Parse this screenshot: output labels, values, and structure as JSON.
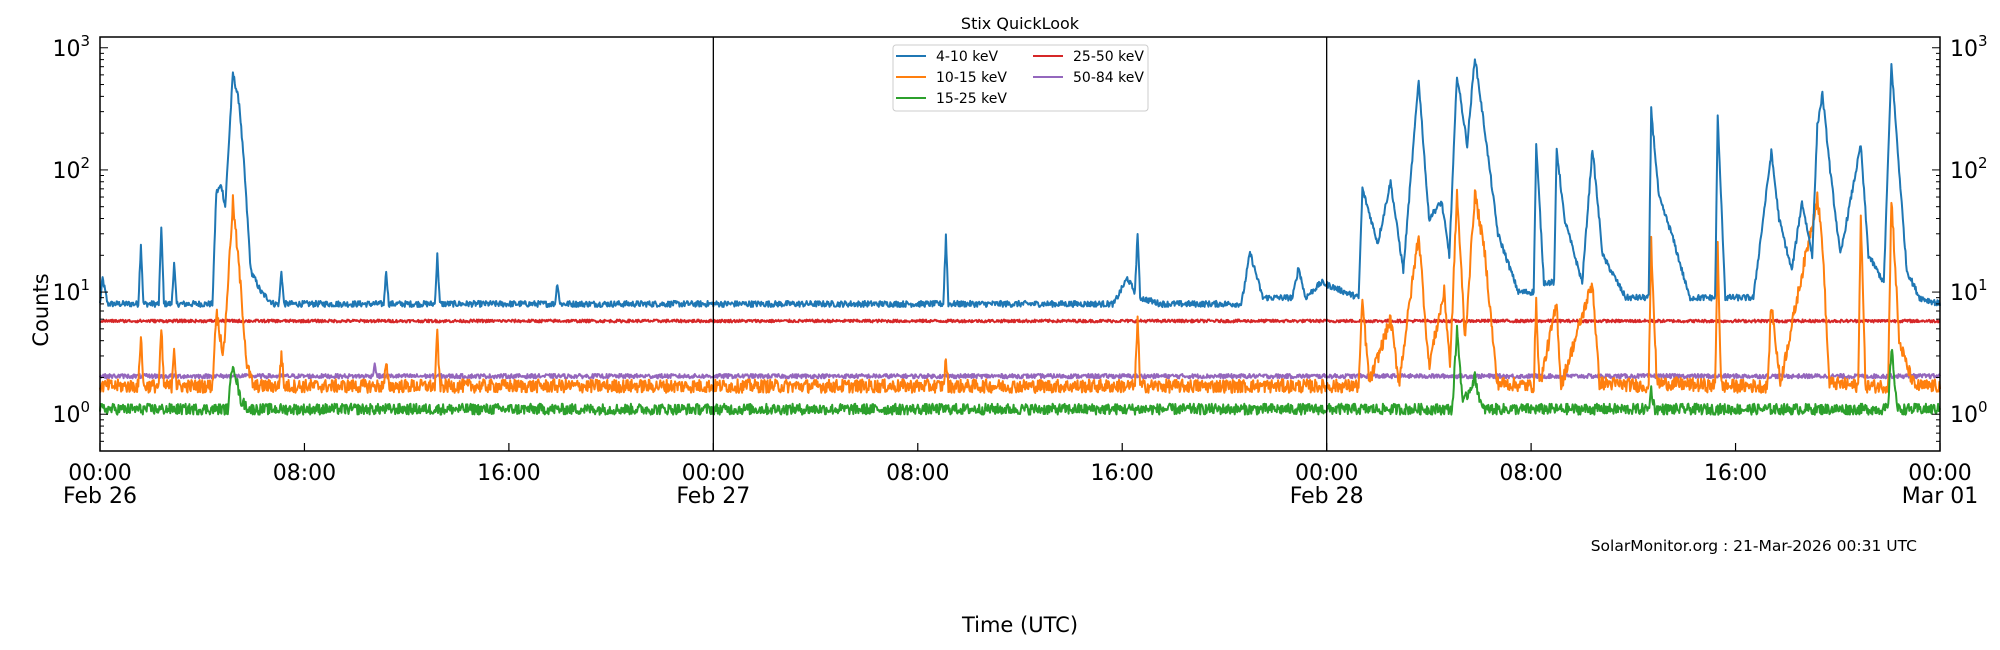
{
  "chart_data": {
    "type": "line",
    "title": "Stix QuickLook",
    "xlabel": "Time (UTC)",
    "ylabel": "Counts",
    "yscale": "log",
    "ylim": [
      0.5,
      1225
    ],
    "xlim": [
      "2026-02-26T00:00",
      "2026-03-01T00:00"
    ],
    "grid": false,
    "legend_placement": "top-center",
    "watermark": "SolarMonitor.org : 21-Mar-2026 00:31 UTC",
    "day_separators": [
      "2026-02-27T00:00",
      "2026-02-28T00:00"
    ],
    "x_ticks": [
      {
        "t": "2026-02-26T00:00",
        "label": "00:00",
        "sub": "Feb 26"
      },
      {
        "t": "2026-02-26T08:00",
        "label": "08:00",
        "sub": ""
      },
      {
        "t": "2026-02-26T16:00",
        "label": "16:00",
        "sub": ""
      },
      {
        "t": "2026-02-27T00:00",
        "label": "00:00",
        "sub": "Feb 27"
      },
      {
        "t": "2026-02-27T08:00",
        "label": "08:00",
        "sub": ""
      },
      {
        "t": "2026-02-27T16:00",
        "label": "16:00",
        "sub": ""
      },
      {
        "t": "2026-02-28T00:00",
        "label": "00:00",
        "sub": "Feb 28"
      },
      {
        "t": "2026-02-28T08:00",
        "label": "08:00",
        "sub": ""
      },
      {
        "t": "2026-02-28T16:00",
        "label": "16:00",
        "sub": ""
      },
      {
        "t": "2026-03-01T00:00",
        "label": "00:00",
        "sub": "Mar 01"
      }
    ],
    "y_ticks": [
      {
        "v": 1,
        "base": "10",
        "exp": "0"
      },
      {
        "v": 10,
        "base": "10",
        "exp": "1"
      },
      {
        "v": 100,
        "base": "10",
        "exp": "2"
      },
      {
        "v": 1000,
        "base": "10",
        "exp": "3"
      }
    ],
    "series": [
      {
        "name": "4-10 keV",
        "color": "#1f77b4",
        "points": [
          [
            "2026-02-26T00:00",
            8
          ],
          [
            "2026-02-26T00:06",
            13
          ],
          [
            "2026-02-26T00:18",
            8
          ],
          [
            "2026-02-26T01:30",
            8
          ],
          [
            "2026-02-26T01:36",
            25
          ],
          [
            "2026-02-26T01:42",
            8
          ],
          [
            "2026-02-26T02:18",
            8
          ],
          [
            "2026-02-26T02:24",
            35
          ],
          [
            "2026-02-26T02:30",
            8
          ],
          [
            "2026-02-26T02:48",
            8
          ],
          [
            "2026-02-26T02:54",
            17
          ],
          [
            "2026-02-26T03:00",
            8
          ],
          [
            "2026-02-26T04:24",
            8
          ],
          [
            "2026-02-26T04:33",
            65
          ],
          [
            "2026-02-26T04:45",
            75
          ],
          [
            "2026-02-26T04:54",
            50
          ],
          [
            "2026-02-26T05:12",
            620
          ],
          [
            "2026-02-26T05:27",
            350
          ],
          [
            "2026-02-26T05:39",
            100
          ],
          [
            "2026-02-26T05:54",
            15
          ],
          [
            "2026-02-26T06:18",
            10
          ],
          [
            "2026-02-26T06:48",
            8
          ],
          [
            "2026-02-26T07:00",
            8
          ],
          [
            "2026-02-26T07:06",
            15
          ],
          [
            "2026-02-26T07:12",
            8
          ],
          [
            "2026-02-26T11:06",
            8
          ],
          [
            "2026-02-26T11:12",
            15
          ],
          [
            "2026-02-26T11:18",
            8
          ],
          [
            "2026-02-26T13:06",
            8
          ],
          [
            "2026-02-26T13:12",
            20
          ],
          [
            "2026-02-26T13:18",
            8
          ],
          [
            "2026-02-26T17:48",
            8
          ],
          [
            "2026-02-26T17:54",
            12
          ],
          [
            "2026-02-26T18:00",
            8
          ],
          [
            "2026-02-27T09:00",
            8
          ],
          [
            "2026-02-27T09:06",
            29
          ],
          [
            "2026-02-27T09:12",
            8
          ],
          [
            "2026-02-27T15:40",
            8
          ],
          [
            "2026-02-27T16:12",
            13
          ],
          [
            "2026-02-27T16:30",
            10
          ],
          [
            "2026-02-27T16:36",
            31
          ],
          [
            "2026-02-27T16:42",
            9
          ],
          [
            "2026-02-27T17:30",
            8
          ],
          [
            "2026-02-27T20:40",
            8
          ],
          [
            "2026-02-27T21:00",
            21
          ],
          [
            "2026-02-27T21:30",
            9
          ],
          [
            "2026-02-27T22:40",
            9
          ],
          [
            "2026-02-27T22:54",
            16
          ],
          [
            "2026-02-27T23:10",
            9
          ],
          [
            "2026-02-27T23:48",
            12
          ],
          [
            "2026-02-28T01:15",
            9
          ],
          [
            "2026-02-28T01:24",
            70
          ],
          [
            "2026-02-28T02:00",
            25
          ],
          [
            "2026-02-28T02:30",
            80
          ],
          [
            "2026-02-28T03:00",
            15
          ],
          [
            "2026-02-28T03:36",
            550
          ],
          [
            "2026-02-28T04:00",
            40
          ],
          [
            "2026-02-28T04:30",
            55
          ],
          [
            "2026-02-28T04:48",
            20
          ],
          [
            "2026-02-28T05:06",
            600
          ],
          [
            "2026-02-28T05:30",
            160
          ],
          [
            "2026-02-28T05:48",
            850
          ],
          [
            "2026-02-28T06:12",
            200
          ],
          [
            "2026-02-28T06:42",
            30
          ],
          [
            "2026-02-28T07:30",
            10
          ],
          [
            "2026-02-28T08:06",
            10
          ],
          [
            "2026-02-28T08:12",
            160
          ],
          [
            "2026-02-28T08:30",
            12
          ],
          [
            "2026-02-28T08:54",
            12
          ],
          [
            "2026-02-28T09:00",
            150
          ],
          [
            "2026-02-28T09:18",
            40
          ],
          [
            "2026-02-28T10:00",
            12
          ],
          [
            "2026-02-28T10:24",
            150
          ],
          [
            "2026-02-28T10:48",
            20
          ],
          [
            "2026-02-28T11:42",
            9
          ],
          [
            "2026-02-28T12:36",
            9
          ],
          [
            "2026-02-28T12:42",
            310
          ],
          [
            "2026-02-28T13:00",
            60
          ],
          [
            "2026-02-28T13:30",
            30
          ],
          [
            "2026-02-28T14:12",
            9
          ],
          [
            "2026-02-28T15:12",
            9
          ],
          [
            "2026-02-28T15:18",
            270
          ],
          [
            "2026-02-28T15:36",
            9
          ],
          [
            "2026-02-28T16:42",
            9
          ],
          [
            "2026-02-28T17:24",
            140
          ],
          [
            "2026-02-28T17:42",
            40
          ],
          [
            "2026-02-28T18:12",
            15
          ],
          [
            "2026-02-28T18:36",
            55
          ],
          [
            "2026-02-28T19:00",
            20
          ],
          [
            "2026-02-28T19:12",
            230
          ],
          [
            "2026-02-28T19:24",
            420
          ],
          [
            "2026-02-28T19:42",
            100
          ],
          [
            "2026-02-28T20:06",
            20
          ],
          [
            "2026-02-28T20:54",
            160
          ],
          [
            "2026-02-28T21:12",
            20
          ],
          [
            "2026-02-28T21:48",
            12
          ],
          [
            "2026-02-28T22:06",
            730
          ],
          [
            "2026-02-28T22:24",
            100
          ],
          [
            "2026-02-28T22:42",
            15
          ],
          [
            "2026-02-28T23:12",
            9
          ],
          [
            "2026-03-01T00:00",
            8
          ]
        ]
      },
      {
        "name": "10-15 keV",
        "color": "#ff7f0e",
        "points": [
          [
            "2026-02-26T00:00",
            1.7
          ],
          [
            "2026-02-26T01:30",
            1.7
          ],
          [
            "2026-02-26T01:36",
            4.7
          ],
          [
            "2026-02-26T01:42",
            1.7
          ],
          [
            "2026-02-26T02:18",
            1.7
          ],
          [
            "2026-02-26T02:24",
            5
          ],
          [
            "2026-02-26T02:30",
            1.7
          ],
          [
            "2026-02-26T02:48",
            1.7
          ],
          [
            "2026-02-26T02:54",
            3.7
          ],
          [
            "2026-02-26T03:00",
            1.7
          ],
          [
            "2026-02-26T04:24",
            1.7
          ],
          [
            "2026-02-26T04:33",
            7
          ],
          [
            "2026-02-26T04:50",
            3
          ],
          [
            "2026-02-26T05:12",
            55
          ],
          [
            "2026-02-26T05:27",
            15
          ],
          [
            "2026-02-26T05:45",
            2.5
          ],
          [
            "2026-02-26T06:00",
            1.7
          ],
          [
            "2026-02-26T07:00",
            1.7
          ],
          [
            "2026-02-26T07:06",
            3.2
          ],
          [
            "2026-02-26T07:12",
            1.7
          ],
          [
            "2026-02-26T11:06",
            1.7
          ],
          [
            "2026-02-26T11:12",
            2.5
          ],
          [
            "2026-02-26T11:18",
            1.7
          ],
          [
            "2026-02-26T13:06",
            1.7
          ],
          [
            "2026-02-26T13:12",
            4.7
          ],
          [
            "2026-02-26T13:18",
            1.7
          ],
          [
            "2026-02-27T09:00",
            1.7
          ],
          [
            "2026-02-27T09:06",
            2.8
          ],
          [
            "2026-02-27T09:12",
            1.7
          ],
          [
            "2026-02-27T16:30",
            1.7
          ],
          [
            "2026-02-27T16:36",
            6.5
          ],
          [
            "2026-02-27T16:42",
            1.7
          ],
          [
            "2026-02-28T01:15",
            1.7
          ],
          [
            "2026-02-28T01:24",
            8.5
          ],
          [
            "2026-02-28T01:40",
            1.8
          ],
          [
            "2026-02-28T02:30",
            6
          ],
          [
            "2026-02-28T02:50",
            1.8
          ],
          [
            "2026-02-28T03:36",
            30
          ],
          [
            "2026-02-28T04:00",
            2.5
          ],
          [
            "2026-02-28T04:36",
            10
          ],
          [
            "2026-02-28T04:50",
            2.5
          ],
          [
            "2026-02-28T05:06",
            65
          ],
          [
            "2026-02-28T05:25",
            4
          ],
          [
            "2026-02-28T05:48",
            65
          ],
          [
            "2026-02-28T06:12",
            20
          ],
          [
            "2026-02-28T06:40",
            1.8
          ],
          [
            "2026-02-28T08:06",
            1.7
          ],
          [
            "2026-02-28T08:12",
            8
          ],
          [
            "2026-02-28T08:20",
            1.7
          ],
          [
            "2026-02-28T09:00",
            8
          ],
          [
            "2026-02-28T09:10",
            1.7
          ],
          [
            "2026-02-28T10:24",
            12
          ],
          [
            "2026-02-28T10:40",
            1.8
          ],
          [
            "2026-02-28T12:36",
            1.7
          ],
          [
            "2026-02-28T12:42",
            25
          ],
          [
            "2026-02-28T12:55",
            1.8
          ],
          [
            "2026-02-28T15:12",
            1.7
          ],
          [
            "2026-02-28T15:18",
            25
          ],
          [
            "2026-02-28T15:26",
            1.7
          ],
          [
            "2026-02-28T17:15",
            1.7
          ],
          [
            "2026-02-28T17:24",
            8
          ],
          [
            "2026-02-28T17:45",
            1.8
          ],
          [
            "2026-02-28T19:12",
            60
          ],
          [
            "2026-02-28T19:24",
            25
          ],
          [
            "2026-02-28T19:40",
            1.8
          ],
          [
            "2026-02-28T20:48",
            1.7
          ],
          [
            "2026-02-28T20:54",
            45
          ],
          [
            "2026-02-28T21:05",
            1.7
          ],
          [
            "2026-02-28T21:58",
            1.7
          ],
          [
            "2026-02-28T22:06",
            60
          ],
          [
            "2026-02-28T22:24",
            4
          ],
          [
            "2026-02-28T22:42",
            2.5
          ],
          [
            "2026-02-28T23:00",
            1.7
          ],
          [
            "2026-03-01T00:00",
            1.7
          ]
        ]
      },
      {
        "name": "15-25 keV",
        "color": "#2ca02c",
        "points": [
          [
            "2026-02-26T00:00",
            1.1
          ],
          [
            "2026-02-26T05:00",
            1.1
          ],
          [
            "2026-02-26T05:12",
            2.7
          ],
          [
            "2026-02-26T05:30",
            1.3
          ],
          [
            "2026-02-26T05:50",
            1.1
          ],
          [
            "2026-02-28T04:55",
            1.1
          ],
          [
            "2026-02-28T05:06",
            5
          ],
          [
            "2026-02-28T05:20",
            1.2
          ],
          [
            "2026-02-28T05:48",
            2
          ],
          [
            "2026-02-28T06:05",
            1.1
          ],
          [
            "2026-02-28T12:36",
            1.1
          ],
          [
            "2026-02-28T12:42",
            1.6
          ],
          [
            "2026-02-28T12:50",
            1.1
          ],
          [
            "2026-02-28T21:58",
            1.1
          ],
          [
            "2026-02-28T22:06",
            3.5
          ],
          [
            "2026-02-28T22:20",
            1.1
          ],
          [
            "2026-03-01T00:00",
            1.1
          ]
        ]
      },
      {
        "name": "25-50 keV",
        "color": "#d62728",
        "points": [
          [
            "2026-02-26T00:00",
            5.8
          ],
          [
            "2026-03-01T00:00",
            5.8
          ]
        ]
      },
      {
        "name": "50-84 keV",
        "color": "#9467bd",
        "points": [
          [
            "2026-02-26T00:00",
            2.05
          ],
          [
            "2026-02-26T10:40",
            2.05
          ],
          [
            "2026-02-26T10:45",
            2.6
          ],
          [
            "2026-02-26T10:50",
            2.05
          ],
          [
            "2026-03-01T00:00",
            2.05
          ]
        ]
      }
    ]
  }
}
